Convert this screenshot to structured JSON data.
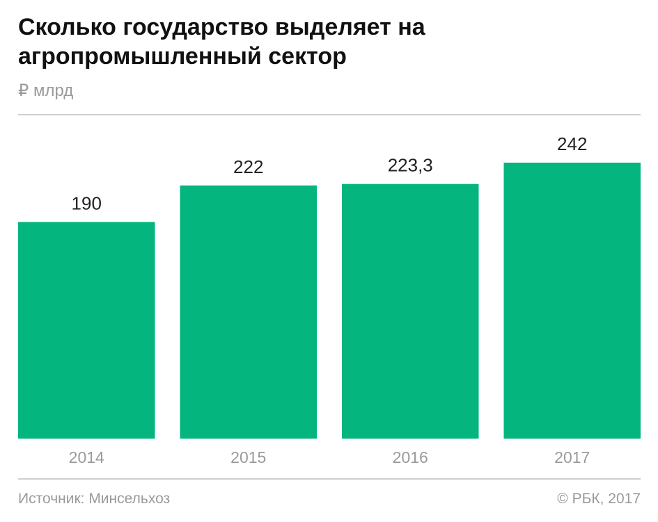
{
  "chart_data": {
    "type": "bar",
    "title": "Сколько государство выделяет на агропромышленный сектор",
    "ylabel": "₽ млрд",
    "categories": [
      "2014",
      "2015",
      "2016",
      "2017"
    ],
    "values": [
      190,
      222,
      223.3,
      242
    ],
    "value_labels": [
      "190",
      "222",
      "223,3",
      "242"
    ],
    "ylim": [
      0,
      242
    ],
    "grid": false,
    "bar_color": "#05b57e"
  },
  "footer": {
    "source": "Источник: Минсельхоз",
    "copyright": "© РБК, 2017"
  }
}
